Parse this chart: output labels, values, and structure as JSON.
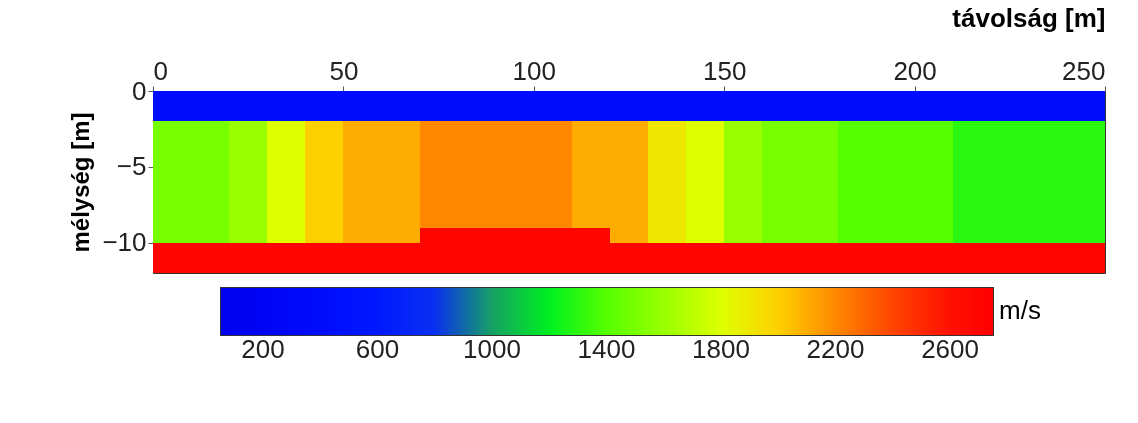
{
  "chart_data": {
    "type": "heatmap",
    "xlabel": "távolság [m]",
    "ylabel": "mélység [m]",
    "clabel": "m/s",
    "x": [
      5,
      15,
      25,
      35,
      45,
      55,
      65,
      75,
      85,
      95,
      105,
      115,
      125,
      135,
      145,
      155,
      165,
      175,
      185,
      195,
      205,
      215,
      225,
      235,
      245
    ],
    "xlim": [
      0,
      250
    ],
    "xticks": [
      0,
      50,
      100,
      150,
      200,
      250
    ],
    "ylim": [
      -12,
      0
    ],
    "yticks": [
      0,
      -5,
      -10
    ],
    "clim": [
      50,
      2750
    ],
    "cticks": [
      200,
      600,
      1000,
      1400,
      1800,
      2200,
      2600
    ],
    "cells": [
      [
        400,
        400,
        400,
        400,
        400,
        400,
        400,
        400,
        400,
        400,
        400,
        400,
        400,
        400,
        400,
        400,
        400,
        400,
        400,
        400,
        400,
        400,
        400,
        400,
        400
      ],
      [
        400,
        400,
        400,
        400,
        400,
        400,
        400,
        400,
        400,
        400,
        400,
        400,
        400,
        400,
        400,
        400,
        400,
        400,
        400,
        400,
        400,
        400,
        400,
        400,
        400
      ],
      [
        1500,
        1500,
        1600,
        1800,
        2000,
        2100,
        2100,
        2200,
        2200,
        2200,
        2200,
        2100,
        2100,
        1900,
        1800,
        1600,
        1500,
        1500,
        1400,
        1400,
        1400,
        1300,
        1300,
        1300,
        1300
      ],
      [
        1500,
        1500,
        1600,
        1800,
        2000,
        2100,
        2100,
        2200,
        2200,
        2200,
        2200,
        2100,
        2100,
        1900,
        1800,
        1600,
        1500,
        1500,
        1400,
        1400,
        1400,
        1300,
        1300,
        1300,
        1300
      ],
      [
        1500,
        1500,
        1600,
        1800,
        2000,
        2100,
        2100,
        2200,
        2200,
        2200,
        2200,
        2100,
        2100,
        1900,
        1800,
        1600,
        1500,
        1500,
        1400,
        1400,
        1400,
        1300,
        1300,
        1300,
        1300
      ],
      [
        1500,
        1500,
        1600,
        1800,
        2000,
        2100,
        2100,
        2200,
        2200,
        2200,
        2200,
        2100,
        2100,
        1900,
        1800,
        1600,
        1500,
        1500,
        1400,
        1400,
        1400,
        1300,
        1300,
        1300,
        1300
      ],
      [
        1500,
        1500,
        1600,
        1800,
        2000,
        2100,
        2100,
        2200,
        2200,
        2200,
        2200,
        2100,
        2100,
        1900,
        1800,
        1600,
        1500,
        1500,
        1400,
        1400,
        1400,
        1300,
        1300,
        1300,
        1300
      ],
      [
        1500,
        1500,
        1600,
        1800,
        2000,
        2100,
        2100,
        2200,
        2200,
        2200,
        2200,
        2100,
        2100,
        1900,
        1800,
        1600,
        1500,
        1500,
        1400,
        1400,
        1400,
        1300,
        1300,
        1300,
        1300
      ],
      [
        1500,
        1500,
        1600,
        1800,
        2000,
        2100,
        2100,
        2200,
        2200,
        2200,
        2200,
        2100,
        2100,
        1900,
        1800,
        1600,
        1500,
        1500,
        1400,
        1400,
        1400,
        1300,
        1300,
        1300,
        1300
      ],
      [
        1500,
        1500,
        1600,
        1800,
        2000,
        2100,
        2100,
        2700,
        2700,
        2700,
        2700,
        2700,
        2100,
        1900,
        1800,
        1600,
        1500,
        1500,
        1400,
        1400,
        1400,
        1300,
        1300,
        1300,
        1300
      ],
      [
        2700,
        2700,
        2700,
        2700,
        2700,
        2700,
        2700,
        2700,
        2700,
        2700,
        2700,
        2700,
        2700,
        2700,
        2700,
        2700,
        2700,
        2700,
        2700,
        2700,
        2700,
        2700,
        2700,
        2700,
        2700
      ],
      [
        2700,
        2700,
        2700,
        2700,
        2700,
        2700,
        2700,
        2700,
        2700,
        2700,
        2700,
        2700,
        2700,
        2700,
        2700,
        2700,
        2700,
        2700,
        2700,
        2700,
        2700,
        2700,
        2700,
        2700,
        2700
      ]
    ]
  }
}
